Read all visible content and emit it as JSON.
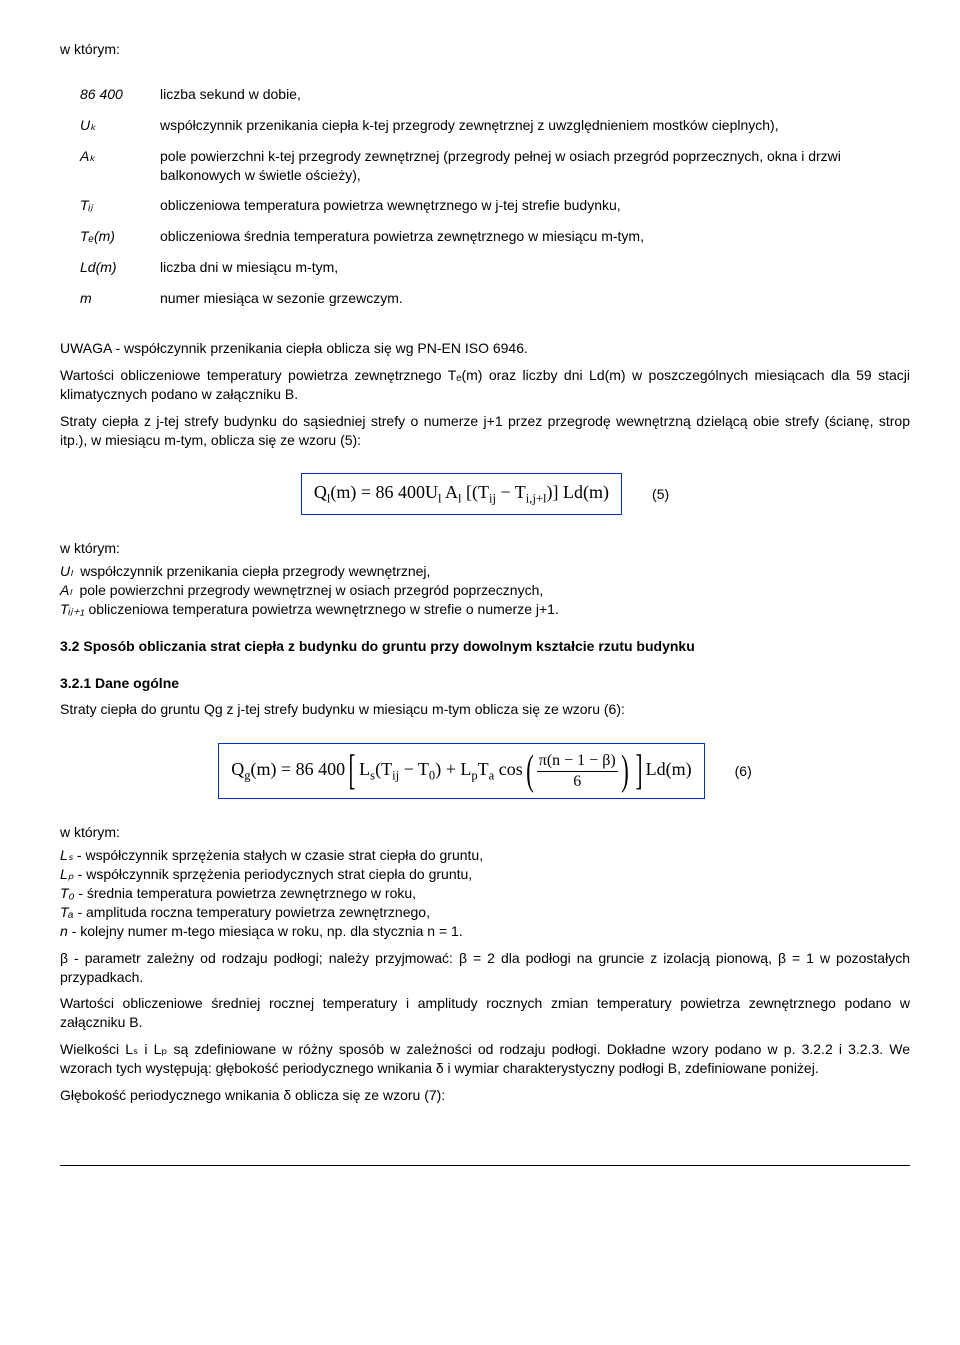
{
  "intro": "w którym:",
  "defs": [
    {
      "sym": "86 400",
      "desc": "liczba sekund w dobie,",
      "italic": false
    },
    {
      "sym": "Uₖ",
      "desc": "współczynnik przenikania ciepła k-tej przegrody zewnętrznej z uwzględnieniem mostków cieplnych),",
      "italic": true
    },
    {
      "sym": "Aₖ",
      "desc": "pole powierzchni k-tej przegrody zewnętrznej (przegrody pełnej w osiach przegród poprzecznych, okna i drzwi balkonowych w świetle ościeży),",
      "italic": true
    },
    {
      "sym": "Tᵢⱼ",
      "desc": "obliczeniowa temperatura powietrza wewnętrznego w j-tej strefie budynku,",
      "italic": true
    },
    {
      "sym": "Tₑ(m)",
      "desc": "obliczeniowa średnia temperatura powietrza zewnętrznego w miesiącu m-tym,",
      "italic": true
    },
    {
      "sym": "Ld(m)",
      "desc": "liczba dni w miesiącu m-tym,",
      "italic": true
    },
    {
      "sym": "m",
      "desc": "numer miesiąca w sezonie grzewczym.",
      "italic": true
    }
  ],
  "note1": "UWAGA - współczynnik przenikania ciepła oblicza się wg PN-EN ISO 6946.",
  "para1": "Wartości obliczeniowe temperatury powietrza zewnętrznego Tₑ(m) oraz liczby dni Ld(m) w poszczególnych miesiącach dla 59 stacji klimatycznych podano w załączniku B.",
  "para2": "Straty ciepła z j-tej strefy budynku do sąsiedniej strefy o numerze j+1 przez przegrodę wewnętrzną dzielącą obie strefy (ścianę, strop itp.), w miesiącu m-tym, oblicza się ze wzoru (5):",
  "formula5": {
    "text": "Qₗ(m) = 86 400Uₗ Aₗ [(Tᵢⱼ − Tᵢ,ⱼ₊₁)] Ld(m)",
    "num": "(5)"
  },
  "intro2": "w którym:",
  "defs2": [
    {
      "sym": "Uₗ",
      "desc": "współczynnik przenikania ciepła przegrody wewnętrznej,"
    },
    {
      "sym": "Aₗ",
      "desc": "pole powierzchni przegrody wewnętrznej w osiach przegród poprzecznych,"
    },
    {
      "sym": "Tᵢⱼ₊₁",
      "desc": "obliczeniowa temperatura powietrza wewnętrznego w strefie o numerze j+1."
    }
  ],
  "section3_2": "3.2 Sposób obliczania strat ciepła z budynku do gruntu przy dowolnym kształcie rzutu budynku",
  "section3_2_1": "3.2.1 Dane ogólne",
  "para3": "Straty ciepła do gruntu Qg z j-tej strefy budynku w miesiącu m-tym oblicza się ze wzoru (6):",
  "formula6": {
    "num": "(6)"
  },
  "intro3": "w którym:",
  "defs3": [
    {
      "sym": "Lₛ",
      "desc": "- współczynnik sprzężenia stałych w czasie strat ciepła do gruntu,"
    },
    {
      "sym": "Lₚ",
      "desc": "- współczynnik sprzężenia periodycznych strat ciepła do gruntu,"
    },
    {
      "sym": "T₀",
      "desc": "- średnia temperatura powietrza zewnętrznego w roku,"
    },
    {
      "sym": "Tₐ",
      "desc": "- amplituda roczna temperatury powietrza zewnętrznego,"
    },
    {
      "sym": "n",
      "desc": "- kolejny numer m-tego miesiąca w roku, np. dla stycznia n = 1."
    }
  ],
  "beta": "β - parametr zależny od rodzaju podłogi; należy przyjmować: β = 2 dla podłogi na gruncie z izolacją pionową, β = 1 w pozostałych przypadkach.",
  "para4": "Wartości obliczeniowe średniej rocznej temperatury i amplitudy rocznych zmian temperatury powietrza zewnętrznego podano w załączniku B.",
  "para5": "Wielkości Lₛ i Lₚ są zdefiniowane w różny sposób w zależności od rodzaju podłogi. Dokładne wzory podano w p. 3.2.2 i 3.2.3. We wzorach tych występują: głębokość periodycznego wnikania δ i wymiar charakterystyczny podłogi B, zdefiniowane poniżej.",
  "para6": "Głębokość periodycznego wnikania δ oblicza się ze wzoru (7):"
}
